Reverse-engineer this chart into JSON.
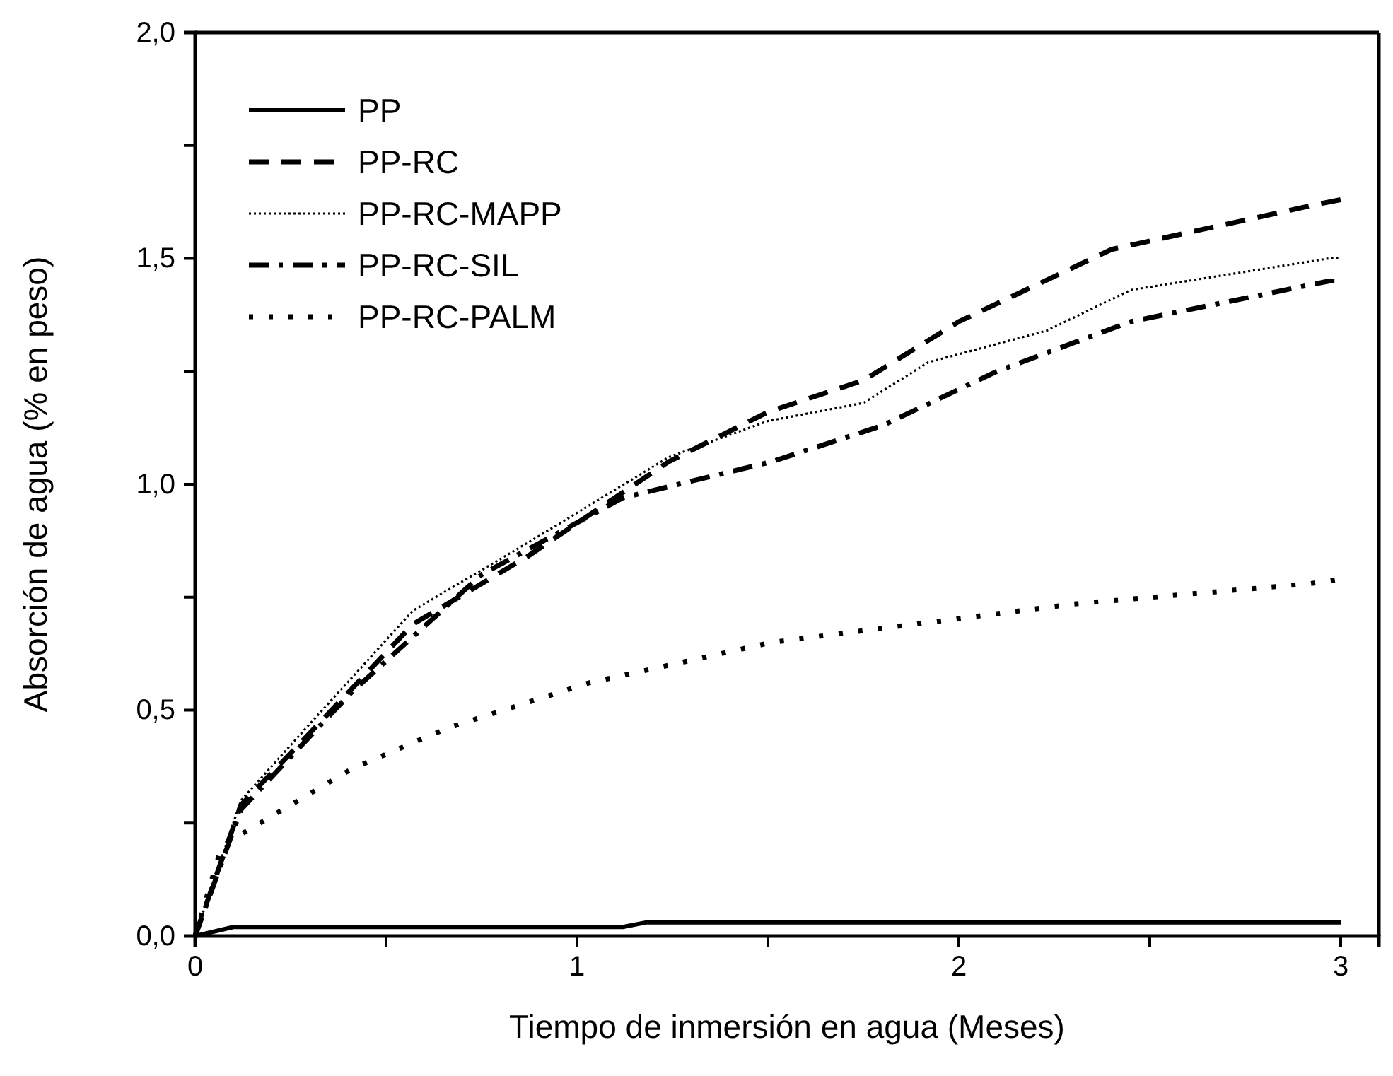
{
  "chart_data": {
    "type": "line",
    "xlabel": "Tiempo de inmersión en agua (Meses)",
    "ylabel": "Absorción de agua (% en peso)",
    "xlim": [
      0,
      3.1
    ],
    "xticks": [
      0,
      {
        "value": 0.5,
        "label": null
      },
      1,
      {
        "value": 1.5,
        "label": null
      },
      2,
      {
        "value": 2.5,
        "label": null
      },
      3
    ],
    "ylim": [
      0,
      2
    ],
    "yticks": [
      {
        "value": 0,
        "label": "0,0"
      },
      {
        "value": 0.25,
        "label": null
      },
      {
        "value": 0.5,
        "label": "0,5"
      },
      {
        "value": 0.75,
        "label": null
      },
      {
        "value": 1,
        "label": "1,0"
      },
      {
        "value": 1.25,
        "label": null
      },
      {
        "value": 1.5,
        "label": "1,5"
      },
      {
        "value": 1.75,
        "label": null
      },
      {
        "value": 2,
        "label": "2,0"
      }
    ],
    "legend": "top left",
    "grid": false,
    "marker": "none",
    "series": [
      {
        "name": "PP",
        "color": "#000000",
        "line_style": "solid",
        "x": [
          0,
          0.1,
          1.12,
          1.18,
          3
        ],
        "values": [
          0,
          0.02,
          0.02,
          0.03,
          0.03
        ]
      },
      {
        "name": "PP-RC",
        "color": "#000000",
        "line_style": "dashed",
        "x": [
          0,
          0.12,
          0.29,
          0.57,
          0.87,
          1.24,
          1.5,
          1.75,
          2.0,
          2.2,
          2.4,
          2.94,
          3
        ],
        "values": [
          0,
          0.29,
          0.44,
          0.69,
          0.84,
          1.05,
          1.16,
          1.23,
          1.36,
          1.44,
          1.52,
          1.62,
          1.63
        ]
      },
      {
        "name": "PP-RC-MAPP",
        "color": "#000000",
        "line_style": "dotted",
        "x": [
          0,
          0.12,
          0.29,
          0.57,
          0.87,
          1.24,
          1.5,
          1.75,
          1.92,
          2.23,
          2.45,
          2.97,
          3
        ],
        "values": [
          0,
          0.3,
          0.46,
          0.72,
          0.87,
          1.06,
          1.14,
          1.18,
          1.27,
          1.34,
          1.43,
          1.5,
          1.5
        ]
      },
      {
        "name": "PP-RC-SIL",
        "color": "#000000",
        "line_style": "dashdot",
        "x": [
          0,
          0.12,
          0.41,
          0.75,
          1.12,
          1.51,
          1.8,
          2.1,
          2.45,
          2.97,
          3
        ],
        "values": [
          0,
          0.28,
          0.54,
          0.8,
          0.97,
          1.05,
          1.13,
          1.25,
          1.36,
          1.45,
          1.45
        ]
      },
      {
        "name": "PP-RC-PALM",
        "color": "#000000",
        "line_style": "loose-dotted",
        "x": [
          0,
          0.07,
          0.17,
          0.41,
          0.66,
          1.03,
          1.51,
          2.3,
          2.92,
          3
        ],
        "values": [
          0,
          0.2,
          0.25,
          0.37,
          0.46,
          0.56,
          0.65,
          0.735,
          0.78,
          0.79
        ]
      }
    ]
  }
}
